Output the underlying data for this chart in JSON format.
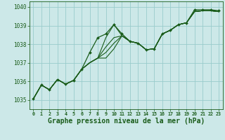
{
  "background_color": "#cce8e8",
  "grid_color": "#99cccc",
  "line_color": "#1a5c1a",
  "xlabel": "Graphe pression niveau de la mer (hPa)",
  "xlabel_fontsize": 7,
  "xlim": [
    -0.5,
    23.5
  ],
  "ylim": [
    1034.5,
    1040.3
  ],
  "yticks": [
    1035,
    1036,
    1037,
    1038,
    1039,
    1040
  ],
  "xticks": [
    0,
    1,
    2,
    3,
    4,
    5,
    6,
    7,
    8,
    9,
    10,
    11,
    12,
    13,
    14,
    15,
    16,
    17,
    18,
    19,
    20,
    21,
    22,
    23
  ],
  "series": [
    [
      1035.05,
      1035.8,
      1035.55,
      1036.1,
      1035.85,
      1036.05,
      1036.65,
      1037.0,
      1037.25,
      1038.35,
      1039.05,
      1038.45,
      1038.15,
      1038.05,
      1037.7,
      1037.75,
      1038.55,
      1038.75,
      1039.05,
      1039.15,
      1039.75,
      1039.8,
      1039.8,
      1039.75
    ],
    [
      1035.05,
      1035.8,
      1035.55,
      1036.1,
      1035.85,
      1036.05,
      1036.65,
      1037.0,
      1037.25,
      1037.85,
      1038.35,
      1038.45,
      1038.15,
      1038.05,
      1037.7,
      1037.75,
      1038.55,
      1038.75,
      1039.05,
      1039.15,
      1039.75,
      1039.8,
      1039.8,
      1039.75
    ],
    [
      1035.05,
      1035.8,
      1035.55,
      1036.1,
      1035.85,
      1036.05,
      1036.65,
      1037.0,
      1037.25,
      1037.55,
      1038.05,
      1038.45,
      1038.15,
      1038.05,
      1037.7,
      1037.75,
      1038.55,
      1038.75,
      1039.05,
      1039.15,
      1039.75,
      1039.8,
      1039.8,
      1039.75
    ],
    [
      1035.05,
      1035.8,
      1035.55,
      1036.1,
      1035.85,
      1036.05,
      1036.65,
      1037.0,
      1037.25,
      1037.25,
      1037.75,
      1038.45,
      1038.15,
      1038.05,
      1037.7,
      1037.75,
      1038.55,
      1038.75,
      1039.05,
      1039.15,
      1039.75,
      1039.8,
      1039.8,
      1039.75
    ]
  ],
  "main_series": [
    1035.05,
    1035.8,
    1035.55,
    1036.1,
    1035.85,
    1036.05,
    1036.65,
    1037.55,
    1038.35,
    1038.55,
    1039.05,
    1038.55,
    1038.15,
    1038.05,
    1037.7,
    1037.75,
    1038.55,
    1038.75,
    1039.05,
    1039.15,
    1039.85,
    1039.85,
    1039.85,
    1039.8
  ]
}
